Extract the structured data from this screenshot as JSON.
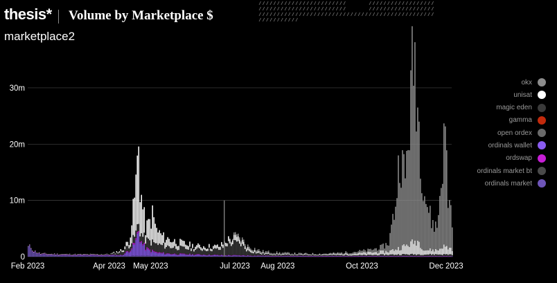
{
  "header": {
    "brand": "thesis*",
    "title": "Volume by Marketplace $",
    "subtitle": "marketplace2"
  },
  "colors": {
    "okx": "#8c8c8c",
    "unisat": "#ffffff",
    "magic_eden": "#3a3a3a",
    "gamma": "#c22a0c",
    "open_ordex": "#6a6a6a",
    "ordinals_wallet": "#8a5cf0",
    "ordswap": "#c71ed6",
    "ordinals_market_bt": "#4a4a4a",
    "ordinals_market": "#6e55b8"
  },
  "chart_data": {
    "type": "bar",
    "stacked": true,
    "title": "Volume by Marketplace $",
    "subtitle": "marketplace2",
    "xlabel": "",
    "ylabel": "",
    "ylim": [
      0,
      37000000
    ],
    "grid": true,
    "legend_position": "right",
    "y_ticks": [
      {
        "value": 0,
        "label": "0"
      },
      {
        "value": 10000000,
        "label": "10m"
      },
      {
        "value": 20000000,
        "label": "20m"
      },
      {
        "value": 30000000,
        "label": "30m"
      }
    ],
    "x_range": [
      "2023-02-01",
      "2023-12-05"
    ],
    "x_ticks": [
      {
        "date": "2023-02-01",
        "label": "Feb 2023"
      },
      {
        "date": "2023-04-01",
        "label": "Apr 2023"
      },
      {
        "date": "2023-05-01",
        "label": "May 2023"
      },
      {
        "date": "2023-07-01",
        "label": "Jul 2023"
      },
      {
        "date": "2023-08-01",
        "label": "Aug 2023"
      },
      {
        "date": "2023-10-01",
        "label": "Oct 2023"
      },
      {
        "date": "2023-12-01",
        "label": "Dec 2023"
      }
    ],
    "legend": [
      "okx",
      "unisat",
      "magic eden",
      "gamma",
      "open ordex",
      "ordinals wallet",
      "ordswap",
      "ordinals market bt",
      "ordinals market"
    ],
    "series_order": [
      "ordinals market",
      "ordinals wallet",
      "ordswap",
      "magic eden",
      "unisat",
      "okx"
    ],
    "series": [
      {
        "name": "ordinals market",
        "points": [
          [
            "2023-02-03",
            1600000
          ],
          [
            "2023-02-05",
            900000
          ],
          [
            "2023-02-10",
            400000
          ],
          [
            "2023-02-20",
            300000
          ],
          [
            "2023-03-10",
            200000
          ],
          [
            "2023-04-10",
            150000
          ],
          [
            "2023-04-25",
            200000
          ],
          [
            "2023-05-10",
            100000
          ],
          [
            "2023-06-15",
            80000
          ],
          [
            "2023-08-01",
            50000
          ],
          [
            "2023-10-15",
            50000
          ],
          [
            "2023-12-05",
            50000
          ]
        ]
      },
      {
        "name": "ordinals wallet",
        "points": [
          [
            "2023-02-01",
            50000
          ],
          [
            "2023-04-10",
            100000
          ],
          [
            "2023-04-15",
            800000
          ],
          [
            "2023-04-18",
            1500000
          ],
          [
            "2023-04-20",
            2500000
          ],
          [
            "2023-04-21",
            3500000
          ],
          [
            "2023-04-22",
            4200000
          ],
          [
            "2023-04-23",
            3000000
          ],
          [
            "2023-04-24",
            2200000
          ],
          [
            "2023-04-26",
            1500000
          ],
          [
            "2023-04-28",
            1000000
          ],
          [
            "2023-05-05",
            500000
          ],
          [
            "2023-05-20",
            300000
          ],
          [
            "2023-06-20",
            150000
          ],
          [
            "2023-08-01",
            50000
          ],
          [
            "2023-12-05",
            50000
          ]
        ]
      },
      {
        "name": "ordswap",
        "points": [
          [
            "2023-02-01",
            0
          ],
          [
            "2023-04-10",
            50000
          ],
          [
            "2023-04-20",
            300000
          ],
          [
            "2023-05-10",
            100000
          ],
          [
            "2023-07-01",
            50000
          ],
          [
            "2023-12-05",
            0
          ]
        ]
      },
      {
        "name": "magic eden",
        "points": [
          [
            "2023-02-01",
            50000
          ],
          [
            "2023-04-01",
            80000
          ],
          [
            "2023-04-20",
            1200000
          ],
          [
            "2023-05-01",
            1500000
          ],
          [
            "2023-05-15",
            1200000
          ],
          [
            "2023-06-01",
            900000
          ],
          [
            "2023-06-20",
            1000000
          ],
          [
            "2023-06-25",
            2000000
          ],
          [
            "2023-07-01",
            2200000
          ],
          [
            "2023-07-05",
            2000000
          ],
          [
            "2023-07-10",
            800000
          ],
          [
            "2023-07-20",
            300000
          ],
          [
            "2023-08-01",
            200000
          ],
          [
            "2023-10-01",
            150000
          ],
          [
            "2023-11-01",
            300000
          ],
          [
            "2023-12-05",
            300000
          ]
        ]
      },
      {
        "name": "unisat",
        "points": [
          [
            "2023-02-01",
            20000
          ],
          [
            "2023-04-01",
            50000
          ],
          [
            "2023-04-10",
            300000
          ],
          [
            "2023-04-15",
            800000
          ],
          [
            "2023-04-18",
            5000000
          ],
          [
            "2023-04-19",
            7000000
          ],
          [
            "2023-04-21",
            11000000
          ],
          [
            "2023-04-22",
            14000000
          ],
          [
            "2023-04-23",
            8000000
          ],
          [
            "2023-04-25",
            5000000
          ],
          [
            "2023-04-27",
            2000000
          ],
          [
            "2023-05-01",
            4000000
          ],
          [
            "2023-05-02",
            5000000
          ],
          [
            "2023-05-05",
            2500000
          ],
          [
            "2023-05-10",
            1500000
          ],
          [
            "2023-05-20",
            1000000
          ],
          [
            "2023-06-01",
            600000
          ],
          [
            "2023-06-15",
            500000
          ],
          [
            "2023-07-01",
            800000
          ],
          [
            "2023-07-20",
            200000
          ],
          [
            "2023-08-15",
            100000
          ],
          [
            "2023-09-15",
            200000
          ],
          [
            "2023-10-20",
            600000
          ],
          [
            "2023-11-01",
            1500000
          ],
          [
            "2023-11-10",
            2500000
          ],
          [
            "2023-11-15",
            800000
          ],
          [
            "2023-11-25",
            800000
          ],
          [
            "2023-11-28",
            1500000
          ],
          [
            "2023-12-05",
            1000000
          ]
        ]
      },
      {
        "name": "okx",
        "points": [
          [
            "2023-02-01",
            0
          ],
          [
            "2023-06-25",
            0
          ],
          [
            "2023-07-01",
            400000
          ],
          [
            "2023-09-01",
            50000
          ],
          [
            "2023-10-05",
            400000
          ],
          [
            "2023-10-15",
            800000
          ],
          [
            "2023-10-20",
            1500000
          ],
          [
            "2023-10-25",
            8000000
          ],
          [
            "2023-10-28",
            17000000
          ],
          [
            "2023-11-01",
            12000000
          ],
          [
            "2023-11-04",
            22000000
          ],
          [
            "2023-11-06",
            30000000
          ],
          [
            "2023-11-08",
            33000000
          ],
          [
            "2023-11-10",
            24000000
          ],
          [
            "2023-11-13",
            14000000
          ],
          [
            "2023-11-16",
            9000000
          ],
          [
            "2023-11-20",
            5000000
          ],
          [
            "2023-11-24",
            4000000
          ],
          [
            "2023-11-28",
            15000000
          ],
          [
            "2023-11-30",
            21000000
          ],
          [
            "2023-12-02",
            9000000
          ],
          [
            "2023-12-05",
            6000000
          ]
        ]
      }
    ],
    "annotations": [
      {
        "date": "2023-06-23",
        "value": 10000000,
        "series": "magic eden"
      }
    ]
  }
}
